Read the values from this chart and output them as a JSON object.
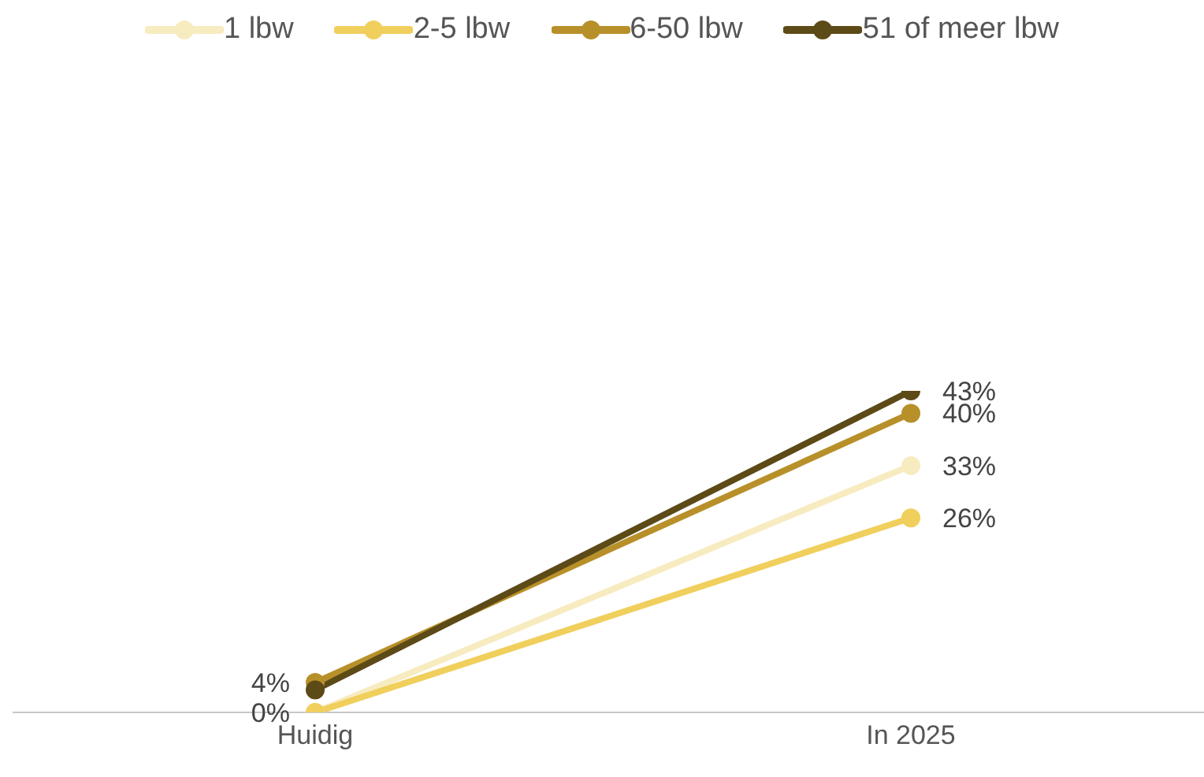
{
  "chart_data": {
    "type": "line",
    "categories": [
      "Huidig",
      "In 2025"
    ],
    "tick_labels": "x",
    "legend": "top",
    "marker": "circle",
    "line_style": "solid",
    "grid": false,
    "series": [
      {
        "name": "1 lbw",
        "color": "#f7ebc0",
        "values": [
          0,
          33
        ],
        "value_labels": [
          null,
          "33%"
        ]
      },
      {
        "name": "2-5 lbw",
        "color": "#f0cf5c",
        "values": [
          0,
          26
        ],
        "value_labels": [
          "0%",
          "26%"
        ]
      },
      {
        "name": "6-50 lbw",
        "color": "#b8902a",
        "values": [
          4,
          40
        ],
        "value_labels": [
          "4%",
          "40%"
        ]
      },
      {
        "name": "51 of meer lbw",
        "color": "#5c4a17",
        "values": [
          3,
          43
        ],
        "value_labels": [
          null,
          "43%"
        ]
      }
    ]
  }
}
